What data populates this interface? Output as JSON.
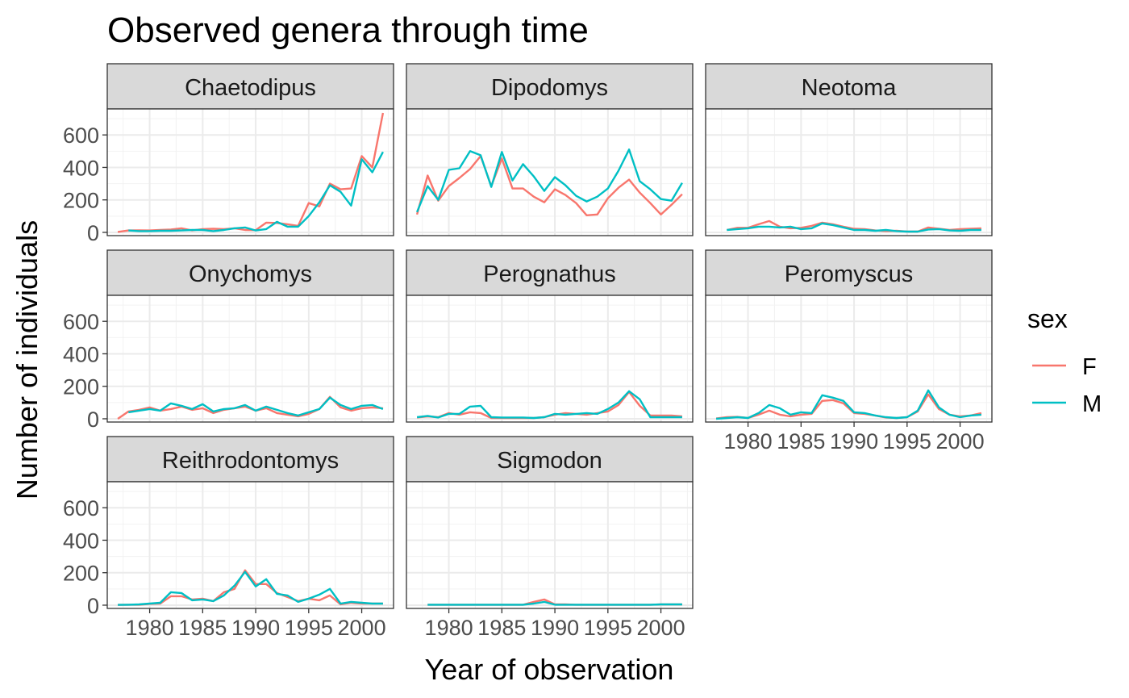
{
  "chart_data": {
    "type": "line",
    "facet": "small-multiples",
    "title": "Observed genera through time",
    "xlabel": "Year of observation",
    "ylabel": "Number of individuals",
    "xlim": [
      1976,
      2003
    ],
    "ylim": [
      -20,
      760
    ],
    "x_ticks": [
      1980,
      1985,
      1990,
      1995,
      2000
    ],
    "y_ticks": [
      0,
      200,
      400,
      600
    ],
    "grid": true,
    "legend": {
      "title": "sex",
      "position": "right",
      "entries": [
        {
          "key": "F",
          "color": "#F8766D"
        },
        {
          "key": "M",
          "color": "#00BFC4"
        }
      ]
    },
    "years": [
      1977,
      1978,
      1979,
      1980,
      1981,
      1982,
      1983,
      1984,
      1985,
      1986,
      1987,
      1988,
      1989,
      1990,
      1991,
      1992,
      1993,
      1994,
      1995,
      1996,
      1997,
      1998,
      1999,
      2000,
      2001,
      2002
    ],
    "panels": [
      {
        "genus": "Chaetodipus",
        "series": [
          {
            "name": "F",
            "values": [
              3,
              12,
              13,
              12,
              15,
              18,
              25,
              12,
              20,
              22,
              20,
              25,
              15,
              14,
              60,
              58,
              50,
              40,
              180,
              160,
              300,
              265,
              270,
              470,
              400,
              735
            ]
          },
          {
            "name": "M",
            "values": [
              null,
              12,
              8,
              8,
              10,
              10,
              12,
              15,
              15,
              8,
              15,
              25,
              30,
              12,
              20,
              65,
              35,
              35,
              100,
              185,
              290,
              250,
              165,
              450,
              370,
              495
            ]
          }
        ]
      },
      {
        "genus": "Dipodomys",
        "series": [
          {
            "name": "F",
            "values": [
              110,
              350,
              195,
              285,
              335,
              390,
              470,
              285,
              455,
              270,
              270,
              220,
              185,
              265,
              230,
              180,
              105,
              110,
              210,
              275,
              325,
              245,
              180,
              110,
              170,
              235
            ]
          },
          {
            "name": "M",
            "values": [
              125,
              285,
              200,
              385,
              395,
              500,
              475,
              280,
              495,
              320,
              420,
              345,
              255,
              340,
              290,
              225,
              190,
              220,
              270,
              380,
              510,
              315,
              265,
              205,
              195,
              305
            ]
          }
        ]
      },
      {
        "genus": "Neotoma",
        "series": [
          {
            "name": "F",
            "values": [
              null,
              15,
              28,
              28,
              50,
              70,
              35,
              25,
              28,
              40,
              60,
              50,
              35,
              22,
              20,
              12,
              8,
              10,
              5,
              5,
              30,
              22,
              15,
              20,
              22,
              25
            ]
          },
          {
            "name": "M",
            "values": [
              null,
              15,
              20,
              25,
              35,
              35,
              30,
              35,
              20,
              25,
              55,
              45,
              30,
              15,
              15,
              10,
              15,
              8,
              5,
              5,
              18,
              20,
              12,
              10,
              15,
              15
            ]
          }
        ]
      },
      {
        "genus": "Onychomys",
        "series": [
          {
            "name": "F",
            "values": [
              0,
              45,
              55,
              70,
              50,
              60,
              75,
              55,
              65,
              35,
              55,
              65,
              75,
              50,
              65,
              35,
              25,
              15,
              30,
              60,
              135,
              70,
              50,
              65,
              70,
              65
            ]
          },
          {
            "name": "M",
            "values": [
              null,
              40,
              50,
              60,
              50,
              95,
              80,
              60,
              90,
              45,
              60,
              65,
              85,
              50,
              75,
              55,
              35,
              20,
              40,
              60,
              130,
              85,
              60,
              80,
              85,
              60
            ]
          }
        ]
      },
      {
        "genus": "Perognathus",
        "series": [
          {
            "name": "F",
            "values": [
              8,
              15,
              10,
              35,
              25,
              40,
              35,
              5,
              5,
              5,
              5,
              5,
              10,
              25,
              35,
              30,
              25,
              35,
              45,
              85,
              165,
              80,
              20,
              20,
              20,
              15
            ]
          },
          {
            "name": "M",
            "values": [
              10,
              18,
              8,
              30,
              30,
              75,
              80,
              10,
              8,
              8,
              8,
              5,
              10,
              30,
              25,
              30,
              35,
              30,
              60,
              100,
              170,
              120,
              10,
              10,
              10,
              10
            ]
          }
        ]
      },
      {
        "genus": "Peromyscus",
        "series": [
          {
            "name": "F",
            "values": [
              2,
              10,
              12,
              5,
              25,
              50,
              25,
              15,
              25,
              30,
              110,
              115,
              95,
              35,
              30,
              20,
              8,
              5,
              10,
              45,
              150,
              60,
              25,
              15,
              20,
              35
            ]
          },
          {
            "name": "M",
            "values": [
              0,
              5,
              10,
              5,
              35,
              85,
              65,
              25,
              40,
              35,
              145,
              130,
              110,
              40,
              35,
              20,
              10,
              5,
              10,
              50,
              175,
              70,
              25,
              10,
              20,
              25
            ]
          }
        ]
      },
      {
        "genus": "Reithrodontomys",
        "series": [
          {
            "name": "F",
            "values": [
              2,
              3,
              3,
              8,
              10,
              55,
              55,
              35,
              40,
              25,
              80,
              100,
              215,
              130,
              130,
              75,
              50,
              25,
              40,
              30,
              60,
              5,
              15,
              10,
              10,
              10
            ]
          },
          {
            "name": "M",
            "values": [
              2,
              3,
              5,
              10,
              15,
              80,
              75,
              30,
              35,
              25,
              60,
              120,
              205,
              115,
              160,
              70,
              60,
              20,
              40,
              65,
              100,
              10,
              20,
              15,
              10,
              10
            ]
          }
        ]
      },
      {
        "genus": "Sigmodon",
        "series": [
          {
            "name": "F",
            "values": [
              null,
              3,
              3,
              3,
              3,
              3,
              3,
              3,
              3,
              3,
              3,
              20,
              35,
              5,
              5,
              3,
              3,
              3,
              3,
              3,
              3,
              3,
              3,
              5,
              5,
              5
            ]
          },
          {
            "name": "M",
            "values": [
              null,
              3,
              3,
              3,
              3,
              3,
              3,
              3,
              3,
              3,
              3,
              10,
              20,
              3,
              3,
              3,
              3,
              3,
              3,
              3,
              3,
              3,
              3,
              5,
              5,
              5
            ]
          }
        ]
      }
    ]
  }
}
